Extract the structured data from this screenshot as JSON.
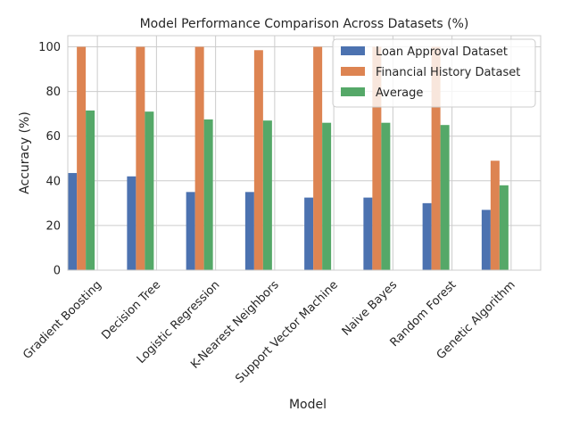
{
  "chart_data": {
    "type": "bar",
    "title": "Model Performance Comparison Across Datasets (%)",
    "xlabel": "Model",
    "ylabel": "Accuracy (%)",
    "ylim": [
      0,
      105
    ],
    "yticks": [
      0,
      20,
      40,
      60,
      80,
      100
    ],
    "grid": true,
    "legend_position": "top-right",
    "categories": [
      "Gradient Boosting",
      "Decision Tree",
      "Logistic Regression",
      "K-Nearest Neighbors",
      "Support Vector Machine",
      "Naive Bayes",
      "Random Forest",
      "Genetic Algorithm"
    ],
    "series": [
      {
        "name": "Loan Approval Dataset",
        "color": "#4c72b0",
        "values": [
          43.5,
          42,
          35,
          35,
          32.5,
          32.5,
          30,
          27
        ]
      },
      {
        "name": "Financial History Dataset",
        "color": "#dd8452",
        "values": [
          100,
          100,
          100,
          98.5,
          100,
          100,
          100,
          49
        ]
      },
      {
        "name": "Average",
        "color": "#55a868",
        "values": [
          71.5,
          71,
          67.5,
          67,
          66,
          66,
          65,
          38
        ]
      }
    ]
  }
}
